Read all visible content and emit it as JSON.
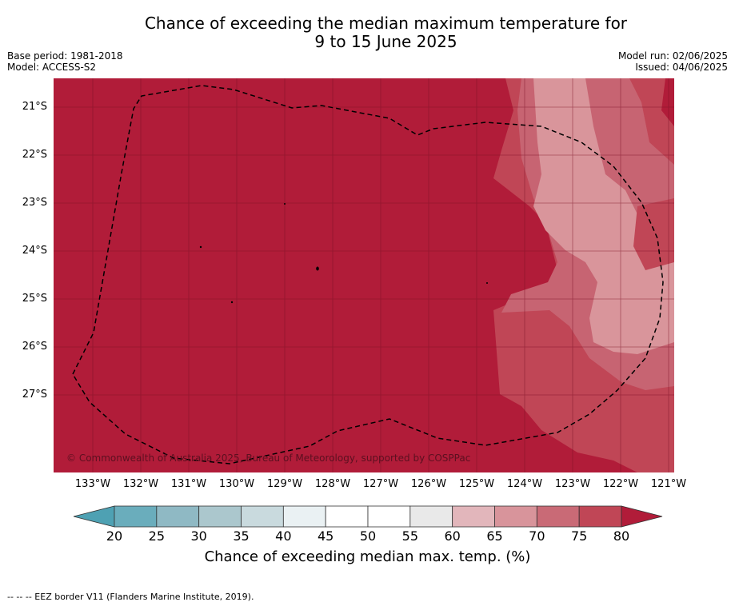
{
  "header": {
    "title_line1": "Chance of exceeding the median maximum temperature for",
    "title_line2": "9 to 15 June 2025",
    "base_period": "Base period: 1981-2018",
    "model": "Model: ACCESS-S2",
    "model_run": "Model run: 02/06/2025",
    "issued": "Issued: 04/06/2025"
  },
  "map": {
    "latitude_labels": [
      "21°S",
      "22°S",
      "23°S",
      "24°S",
      "25°S",
      "26°S",
      "27°S"
    ],
    "longitude_labels": [
      "133°W",
      "132°W",
      "131°W",
      "130°W",
      "129°W",
      "128°W",
      "127°W",
      "126°W",
      "125°W",
      "124°W",
      "123°W",
      "122°W",
      "121°W"
    ],
    "copyright": "© Commonwealth of Australia 2025, Bureau of Meteorology, supported by COSPPac",
    "colors": {
      "band_80_plus": "#b11c39",
      "band_75_80": "#c04656",
      "band_70_75": "#c76472",
      "band_65_70": "#d9959b"
    }
  },
  "colorbar": {
    "ticks": [
      "20",
      "25",
      "30",
      "35",
      "40",
      "45",
      "50",
      "55",
      "60",
      "65",
      "70",
      "75",
      "80"
    ],
    "label": "Chance of exceeding median max. temp. (%)",
    "colors": [
      "#6aadbc",
      "#8fb9c4",
      "#abc7cd",
      "#c9dade",
      "#eaf1f3",
      "#ffffff",
      "#ffffff",
      "#e9e9e9",
      "#e2b6bb",
      "#d8949b",
      "#c96a76",
      "#c04656"
    ],
    "under_color": "#4ea1b3",
    "over_color": "#b11c39"
  },
  "footer": {
    "eez_note": "--  --  -- EEZ border V11 (Flanders Marine Institute, 2019)."
  }
}
